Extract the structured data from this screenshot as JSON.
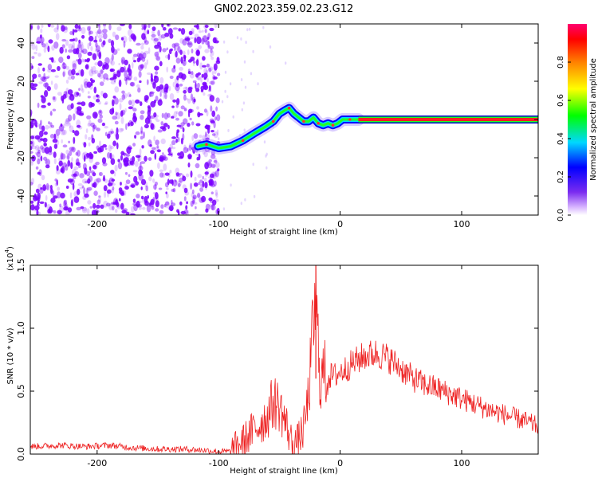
{
  "title": "GN02.2023.359.02.23.G12",
  "chart_data": [
    {
      "type": "heatmap",
      "xlabel": "Height of straight line (km)",
      "ylabel": "Frequency (Hz)",
      "xlim": [
        -255,
        163
      ],
      "ylim": [
        -50,
        50
      ],
      "xticks": [
        -200,
        -100,
        0,
        100
      ],
      "yticks": [
        -40,
        -20,
        0,
        20,
        40
      ],
      "colorbar": {
        "label": "Normalized spectral amplitude",
        "range": [
          0.0,
          1.0
        ],
        "ticks": [
          "0.0",
          "0.2",
          "0.4",
          "0.6",
          "0.8"
        ],
        "colormap": [
          "#ffffff",
          "#7b2cf0",
          "#0000ff",
          "#00e0ff",
          "#00ff00",
          "#ffff00",
          "#ff8000",
          "#ff0000",
          "#ff0080"
        ]
      },
      "noise_region_x": [
        -255,
        -100
      ],
      "noise_color": "#7a00ff",
      "trace": {
        "x": [
          -117,
          -110,
          -100,
          -90,
          -80,
          -70,
          -62,
          -55,
          -50,
          -45,
          -42,
          -38,
          -34,
          -30,
          -26,
          -22,
          -18,
          -14,
          -10,
          -6,
          -2,
          2,
          8,
          15
        ],
        "y": [
          -14,
          -13,
          -15,
          -14,
          -11,
          -7,
          -4,
          -1,
          3,
          5,
          6,
          3,
          1,
          -1,
          -1,
          1,
          -2,
          -3,
          -2,
          -3,
          -2,
          0,
          0,
          0
        ]
      },
      "steady_line": {
        "x": [
          15,
          163
        ],
        "y": 0
      }
    },
    {
      "type": "line",
      "xlabel": "Height of straight line (km)",
      "ylabel": "SNR (10 * v/v)",
      "scale_label": "(x10",
      "scale_exp": "4",
      "scale_close": ")",
      "xlim": [
        -255,
        163
      ],
      "ylim": [
        0.0,
        1.5
      ],
      "xticks": [
        -200,
        -100,
        0,
        100
      ],
      "yticks": [
        "0.0",
        "0.5",
        "1.0",
        "1.5"
      ],
      "series": [
        {
          "color": "#ee2222",
          "x": [
            -255,
            -230,
            -210,
            -190,
            -170,
            -150,
            -130,
            -110,
            -100,
            -90,
            -80,
            -70,
            -60,
            -55,
            -50,
            -45,
            -40,
            -35,
            -30,
            -26,
            -24,
            -22,
            -20,
            -18,
            -16,
            -14,
            -10,
            -5,
            0,
            5,
            10,
            20,
            30,
            40,
            50,
            60,
            70,
            80,
            90,
            100,
            110,
            120,
            130,
            140,
            150,
            163
          ],
          "y": [
            0.06,
            0.07,
            0.06,
            0.07,
            0.05,
            0.04,
            0.04,
            0.03,
            0.02,
            0.02,
            0.1,
            0.2,
            0.3,
            0.42,
            0.38,
            0.25,
            0.1,
            0.1,
            0.2,
            0.45,
            0.75,
            1.05,
            1.2,
            0.85,
            0.55,
            0.65,
            0.62,
            0.62,
            0.65,
            0.68,
            0.72,
            0.78,
            0.8,
            0.76,
            0.68,
            0.6,
            0.55,
            0.52,
            0.48,
            0.44,
            0.4,
            0.36,
            0.33,
            0.3,
            0.27,
            0.22
          ]
        }
      ]
    }
  ]
}
